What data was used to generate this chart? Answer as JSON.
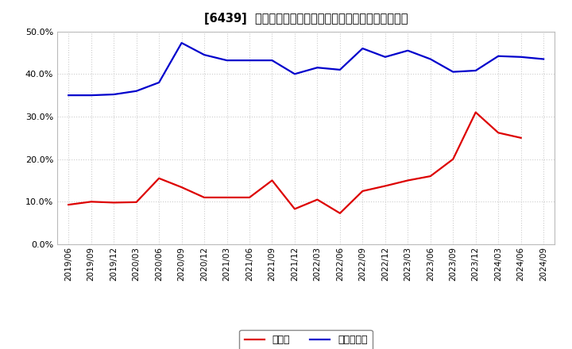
{
  "title": "[6439]  現預金、有利子負債の総資産に対する比率の推移",
  "x_labels": [
    "2019/06",
    "2019/09",
    "2019/12",
    "2020/03",
    "2020/06",
    "2020/09",
    "2020/12",
    "2021/03",
    "2021/06",
    "2021/09",
    "2021/12",
    "2022/03",
    "2022/06",
    "2022/09",
    "2022/12",
    "2023/03",
    "2023/06",
    "2023/09",
    "2023/12",
    "2024/03",
    "2024/06",
    "2024/09"
  ],
  "cash": [
    0.093,
    0.1,
    0.098,
    0.099,
    0.155,
    0.134,
    0.11,
    0.11,
    0.11,
    0.15,
    0.083,
    0.105,
    0.073,
    0.125,
    0.137,
    0.15,
    0.16,
    0.2,
    0.31,
    0.262,
    0.25,
    null
  ],
  "debt": [
    0.35,
    0.35,
    0.352,
    0.36,
    0.38,
    0.473,
    0.445,
    0.432,
    0.432,
    0.432,
    0.4,
    0.415,
    0.41,
    0.46,
    0.44,
    0.455,
    0.435,
    0.405,
    0.408,
    0.442,
    0.44,
    0.435
  ],
  "cash_color": "#dd0000",
  "debt_color": "#0000cc",
  "bg_color": "#ffffff",
  "grid_color": "#aaaaaa",
  "legend_cash": "現預金",
  "legend_debt": "有利子負債",
  "ylim": [
    0.0,
    0.5
  ],
  "yticks": [
    0.0,
    0.1,
    0.2,
    0.3,
    0.4,
    0.5
  ]
}
